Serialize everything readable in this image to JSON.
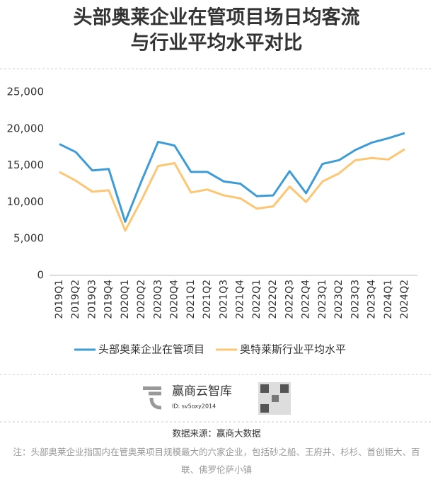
{
  "chart_data": {
    "type": "line",
    "title": [
      "头部奥莱企业在管项目场日均客流",
      "与行业平均水平对比"
    ],
    "categories": [
      "2019Q1",
      "2019Q2",
      "2019Q3",
      "2019Q4",
      "2020Q1",
      "2020Q2",
      "2020Q3",
      "2020Q4",
      "2021Q1",
      "2021Q2",
      "2021Q3",
      "2021Q4",
      "2022Q1",
      "2022Q2",
      "2022Q3",
      "2022Q4",
      "2023Q1",
      "2023Q2",
      "2023Q3",
      "2023Q4",
      "2024Q1",
      "2024Q2"
    ],
    "series": [
      {
        "name": "头部奥莱企业在管项目",
        "color": "#3d9bd6",
        "values": [
          17900,
          16800,
          14300,
          14500,
          7300,
          12900,
          18200,
          17700,
          14100,
          14100,
          12800,
          12500,
          10800,
          10900,
          14200,
          11200,
          15200,
          15700,
          17100,
          18100,
          18700,
          19400
        ]
      },
      {
        "name": "奥特莱斯行业平均水平",
        "color": "#fdc673",
        "values": [
          14100,
          12900,
          11400,
          11600,
          6100,
          10300,
          14900,
          15300,
          11300,
          11700,
          10900,
          10500,
          9100,
          9400,
          12100,
          10000,
          12800,
          13900,
          15700,
          16000,
          15800,
          17200
        ]
      }
    ],
    "ylim": [
      0,
      25000
    ],
    "yticks": [
      0,
      {
        "value": 5000,
        "label": "5,000"
      },
      {
        "value": 10000,
        "label": "10,000"
      },
      {
        "value": 15000,
        "label": "15,000"
      },
      {
        "value": 20000,
        "label": "20,000"
      },
      {
        "value": 25000,
        "label": "25,000"
      }
    ],
    "grid": false,
    "legend": "bottom"
  },
  "footer": {
    "brand": "赢商云智库",
    "id": "ID: sv5oxy2014",
    "source": "数据来源：赢商大数据",
    "note": "注：头部奥莱企业指国内在管奥莱项目规模最大的六家企业，包括砂之船、王府井、杉杉、首创钜大、百联、佛罗伦萨小镇"
  }
}
